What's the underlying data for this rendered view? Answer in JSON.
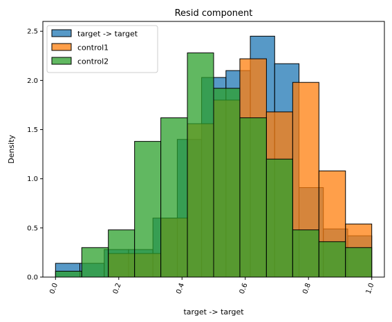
{
  "chart_data": {
    "type": "histogram",
    "title": "Resid component",
    "xlabel": "target -> target",
    "ylabel": "Density",
    "xlim": [
      -0.04,
      1.04
    ],
    "ylim": [
      0,
      2.6
    ],
    "xticks": [
      0.0,
      0.2,
      0.4,
      0.6,
      0.8,
      1.0
    ],
    "xtick_labels": [
      "0.0",
      "0.2",
      "0.4",
      "0.6",
      "0.8",
      "1.0"
    ],
    "yticks": [
      0.0,
      0.5,
      1.0,
      1.5,
      2.0,
      2.5
    ],
    "ytick_labels": [
      "0.0",
      "0.5",
      "1.0",
      "1.5",
      "2.0",
      "2.5"
    ],
    "grid": false,
    "legend_position": "top-left",
    "series": [
      {
        "name": "target -> target",
        "color": "#1f77b4",
        "alpha": 0.75,
        "bins": [
          {
            "x0": 0.0,
            "x1": 0.077,
            "y": 0.14
          },
          {
            "x0": 0.077,
            "x1": 0.154,
            "y": 0.14
          },
          {
            "x0": 0.154,
            "x1": 0.231,
            "y": 0.28
          },
          {
            "x0": 0.231,
            "x1": 0.308,
            "y": 0.28
          },
          {
            "x0": 0.308,
            "x1": 0.385,
            "y": 0.6
          },
          {
            "x0": 0.385,
            "x1": 0.462,
            "y": 1.4
          },
          {
            "x0": 0.462,
            "x1": 0.539,
            "y": 2.03
          },
          {
            "x0": 0.539,
            "x1": 0.616,
            "y": 2.1
          },
          {
            "x0": 0.616,
            "x1": 0.693,
            "y": 2.45
          },
          {
            "x0": 0.693,
            "x1": 0.77,
            "y": 2.17
          },
          {
            "x0": 0.77,
            "x1": 0.847,
            "y": 0.91
          },
          {
            "x0": 0.847,
            "x1": 0.924,
            "y": 0.49
          },
          {
            "x0": 0.924,
            "x1": 1.0,
            "y": 0.42
          }
        ]
      },
      {
        "name": "control1",
        "color": "#ff7f0e",
        "alpha": 0.75,
        "bins": [
          {
            "x0": 0.0,
            "x1": 0.083,
            "y": 0.0
          },
          {
            "x0": 0.083,
            "x1": 0.167,
            "y": 0.0
          },
          {
            "x0": 0.167,
            "x1": 0.25,
            "y": 0.24
          },
          {
            "x0": 0.25,
            "x1": 0.333,
            "y": 0.24
          },
          {
            "x0": 0.333,
            "x1": 0.417,
            "y": 0.6
          },
          {
            "x0": 0.417,
            "x1": 0.5,
            "y": 1.56
          },
          {
            "x0": 0.5,
            "x1": 0.583,
            "y": 1.8
          },
          {
            "x0": 0.583,
            "x1": 0.667,
            "y": 2.22
          },
          {
            "x0": 0.667,
            "x1": 0.75,
            "y": 1.68
          },
          {
            "x0": 0.75,
            "x1": 0.833,
            "y": 1.98
          },
          {
            "x0": 0.833,
            "x1": 0.917,
            "y": 1.08
          },
          {
            "x0": 0.917,
            "x1": 1.0,
            "y": 0.54
          }
        ]
      },
      {
        "name": "control2",
        "color": "#2ca02c",
        "alpha": 0.75,
        "bins": [
          {
            "x0": 0.0,
            "x1": 0.083,
            "y": 0.06
          },
          {
            "x0": 0.083,
            "x1": 0.167,
            "y": 0.3
          },
          {
            "x0": 0.167,
            "x1": 0.25,
            "y": 0.48
          },
          {
            "x0": 0.25,
            "x1": 0.333,
            "y": 1.38
          },
          {
            "x0": 0.333,
            "x1": 0.417,
            "y": 1.62
          },
          {
            "x0": 0.417,
            "x1": 0.5,
            "y": 2.28
          },
          {
            "x0": 0.5,
            "x1": 0.583,
            "y": 1.92
          },
          {
            "x0": 0.583,
            "x1": 0.667,
            "y": 1.62
          },
          {
            "x0": 0.667,
            "x1": 0.75,
            "y": 1.2
          },
          {
            "x0": 0.75,
            "x1": 0.833,
            "y": 0.48
          },
          {
            "x0": 0.833,
            "x1": 0.917,
            "y": 0.36
          },
          {
            "x0": 0.917,
            "x1": 1.0,
            "y": 0.3
          }
        ]
      }
    ]
  }
}
